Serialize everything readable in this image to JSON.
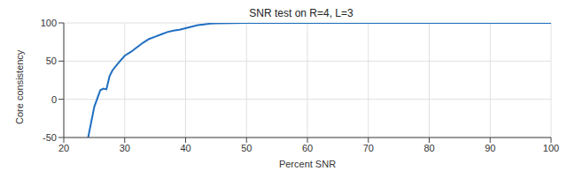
{
  "chart_data": {
    "type": "line",
    "title": "SNR test on R=4, L=3",
    "x_label": "Percent SNR",
    "y_label": "Core consistency",
    "x": [
      24,
      25,
      26,
      26.5,
      27,
      27.5,
      28,
      29,
      30,
      31,
      32,
      33,
      34,
      35,
      36,
      37,
      38,
      39,
      40,
      41,
      42,
      43,
      44,
      45,
      50,
      60,
      70,
      80,
      90,
      100
    ],
    "series": [
      {
        "name": "Core consistency",
        "color": "#1f6fc0",
        "values": [
          -50,
          -10,
          12,
          14,
          13,
          30,
          38,
          48,
          57,
          62,
          68,
          74,
          79,
          82,
          85,
          88,
          90,
          91,
          93,
          95,
          97,
          98,
          99,
          99.5,
          100,
          100,
          100,
          100,
          100,
          100
        ]
      }
    ],
    "xlim": [
      20,
      100
    ],
    "xticks": [
      20,
      30,
      40,
      50,
      60,
      70,
      80,
      90,
      100
    ],
    "ylim": [
      -50,
      100
    ],
    "yticks": [
      -50,
      0,
      50,
      100
    ],
    "grid": true
  }
}
